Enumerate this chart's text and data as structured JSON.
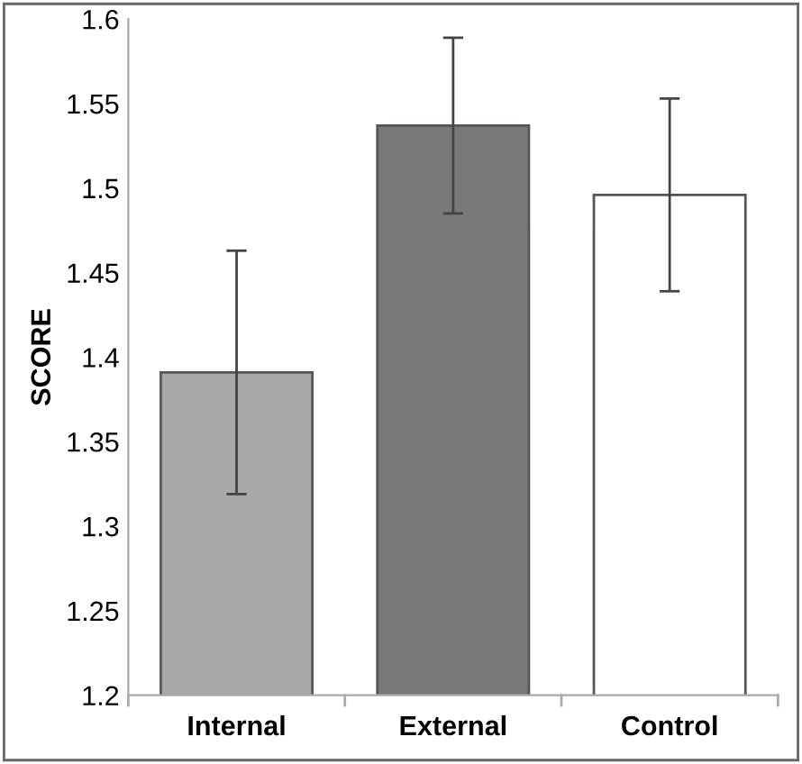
{
  "chart_data": {
    "type": "bar",
    "ylabel": "SCORE",
    "categories": [
      "Internal",
      "External",
      "Control"
    ],
    "values": [
      1.391,
      1.537,
      1.496
    ],
    "colors": [
      "#a7a9aa",
      "#77797b",
      "#ffffff"
    ],
    "errors": [
      0.072,
      0.052,
      0.057
    ],
    "ylim": [
      1.2,
      1.6
    ],
    "yticks": [
      1.2,
      1.25,
      1.3,
      1.35,
      1.4,
      1.45,
      1.5,
      1.55,
      1.6
    ],
    "grid": false,
    "legend": false
  }
}
